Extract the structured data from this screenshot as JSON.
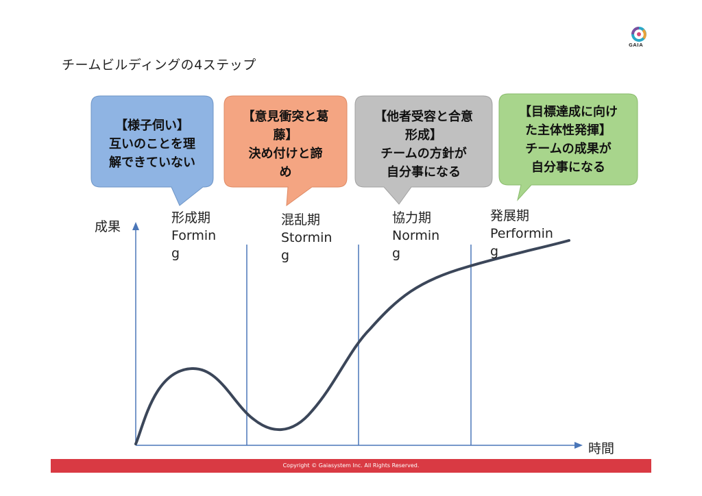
{
  "title": "チームビルディングの4ステップ",
  "logo": {
    "text": "GAIA",
    "icon": "gaia-logo-icon"
  },
  "bubbles": [
    {
      "id": "forming",
      "heading": "【様子伺い】",
      "body": "互いのことを理\n解できていない",
      "color": "#8fb4e3"
    },
    {
      "id": "storming",
      "heading": "【意見衝突と葛\n藤】",
      "body": "決め付けと諦\nめ",
      "color": "#f4a582"
    },
    {
      "id": "norming",
      "heading": "【他者受容と合意\n形成】",
      "body": "チームの方針が\n自分事になる",
      "color": "#c0c0c0"
    },
    {
      "id": "performing",
      "heading": "【目標達成に向け\nた主体性発揮】",
      "body": "チームの成果が\n自分事になる",
      "color": "#a8d58c"
    }
  ],
  "phases": [
    {
      "line1": "形成期",
      "line2": "Formin",
      "line3": "g"
    },
    {
      "line1": "混乱期",
      "line2": "Stormin",
      "line3": "g"
    },
    {
      "line1": "協力期",
      "line2": "Normin",
      "line3": "g"
    },
    {
      "line1": "発展期",
      "line2": "Performin",
      "line3": "g"
    }
  ],
  "y_axis_label": "成果",
  "x_axis_label": "時間",
  "footer": "Copyright © Gaiasystem  Inc. All Rights Reserved.",
  "colors": {
    "axis": "#4a76b8",
    "curve": "#3b4659",
    "footer": "#d93a43"
  }
}
